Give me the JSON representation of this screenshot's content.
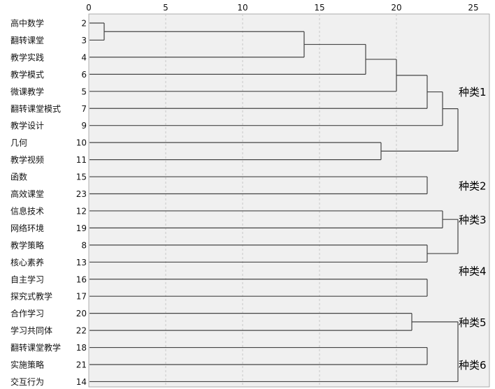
{
  "chart_data": {
    "type": "dendrogram",
    "title": "",
    "x_axis": {
      "min": 0,
      "max": 25,
      "ticks": [
        0,
        5,
        10,
        15,
        20,
        25
      ]
    },
    "leaves": [
      {
        "label": "高中数学",
        "id": "2"
      },
      {
        "label": "翻转课堂",
        "id": "3"
      },
      {
        "label": "教学实践",
        "id": "4"
      },
      {
        "label": "教学模式",
        "id": "6"
      },
      {
        "label": "微课教学",
        "id": "5"
      },
      {
        "label": "翻转课堂模式",
        "id": "7"
      },
      {
        "label": "教学设计",
        "id": "9"
      },
      {
        "label": "几何",
        "id": "10"
      },
      {
        "label": "教学视频",
        "id": "11"
      },
      {
        "label": "函数",
        "id": "15"
      },
      {
        "label": "高效课堂",
        "id": "23"
      },
      {
        "label": "信息技术",
        "id": "12"
      },
      {
        "label": "网络环境",
        "id": "19"
      },
      {
        "label": "教学策略",
        "id": "8"
      },
      {
        "label": "核心素养",
        "id": "13"
      },
      {
        "label": "自主学习",
        "id": "16"
      },
      {
        "label": "探究式教学",
        "id": "17"
      },
      {
        "label": "合作学习",
        "id": "20"
      },
      {
        "label": "学习共同体",
        "id": "22"
      },
      {
        "label": "翻转课堂教学",
        "id": "18"
      },
      {
        "label": "实施策略",
        "id": "21"
      },
      {
        "label": "交互行为",
        "id": "14"
      }
    ],
    "merges": [
      {
        "a": 0,
        "b": 1,
        "distance": 1
      },
      {
        "a": 22,
        "b": 2,
        "distance": 14
      },
      {
        "a": 23,
        "b": 3,
        "distance": 18
      },
      {
        "a": 24,
        "b": 4,
        "distance": 20
      },
      {
        "a": 25,
        "b": 5,
        "distance": 22
      },
      {
        "a": 26,
        "b": 6,
        "distance": 23
      },
      {
        "a": 7,
        "b": 8,
        "distance": 19
      },
      {
        "a": 27,
        "b": 28,
        "distance": 24
      },
      {
        "a": 9,
        "b": 10,
        "distance": 22
      },
      {
        "a": 11,
        "b": 12,
        "distance": 23
      },
      {
        "a": 13,
        "b": 14,
        "distance": 22
      },
      {
        "a": 15,
        "b": 16,
        "distance": 22
      },
      {
        "a": 31,
        "b": 32,
        "distance": 24
      },
      {
        "a": 17,
        "b": 18,
        "distance": 21
      },
      {
        "a": 19,
        "b": 20,
        "distance": 22
      },
      {
        "a": 35,
        "b": 21,
        "distance": 24
      }
    ],
    "clusters": [
      {
        "name": "种类1",
        "members": [
          "2",
          "3",
          "4",
          "6",
          "5",
          "7",
          "9",
          "10",
          "11"
        ]
      },
      {
        "name": "种类2",
        "members": [
          "15",
          "23"
        ]
      },
      {
        "name": "种类3",
        "members": [
          "12",
          "19"
        ]
      },
      {
        "name": "种类4",
        "members": [
          "8",
          "13",
          "16",
          "17"
        ]
      },
      {
        "name": "种类5",
        "members": [
          "20",
          "22"
        ]
      },
      {
        "name": "种类6",
        "members": [
          "18",
          "21",
          "14"
        ]
      }
    ],
    "grid": true
  }
}
